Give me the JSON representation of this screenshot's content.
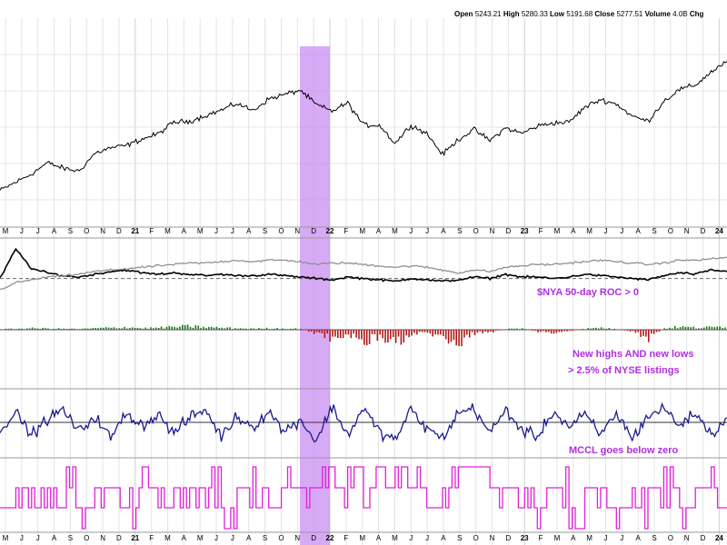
{
  "header": {
    "open_label": "Open",
    "open_value": "5243.21",
    "high_label": "High",
    "high_value": "5280.33",
    "low_label": "Low",
    "low_value": "5191.68",
    "close_label": "Close",
    "close_value": "5277.51",
    "volume_label": "Volume",
    "volume_value": "4.0B",
    "chg_label": "Chg"
  },
  "colors": {
    "price": "#000000",
    "nya": "#000000",
    "roc": "#909090",
    "highs": "#1a7a1a",
    "lows": "#b01818",
    "mccl": "#1a1a8c",
    "indicator": "#e020d8",
    "highlight": "#c98ef2",
    "annotation": "#b02ee0",
    "grid": "#e4e4e4"
  },
  "x_axis": {
    "month_labels": [
      "M",
      "J",
      "J",
      "A",
      "S",
      "O",
      "N",
      "D",
      "21",
      "F",
      "M",
      "A",
      "M",
      "J",
      "J",
      "A",
      "S",
      "O",
      "N",
      "D",
      "22",
      "F",
      "M",
      "A",
      "M",
      "J",
      "J",
      "A",
      "S",
      "O",
      "N",
      "D",
      "23",
      "F",
      "M",
      "A",
      "M",
      "J",
      "J",
      "A",
      "S",
      "O",
      "N",
      "D",
      "24",
      "F"
    ],
    "year_labels": [
      "21",
      "22",
      "23",
      "24"
    ]
  },
  "chart_data": [
    {
      "type": "line",
      "panel": "price",
      "series": [],
      "x": [
        "May 2020",
        "Jun 2020",
        "Jul 2020",
        "Aug 2020",
        "Sep 2020",
        "Oct 2020",
        "Nov 2020",
        "Dec 2020",
        "Jan 2021",
        "Feb 2021",
        "Mar 2021",
        "Apr 2021",
        "May 2021",
        "Jun 2021",
        "Jul 2021",
        "Aug 2021",
        "Sep 2021",
        "Oct 2021",
        "Nov 2021",
        "Dec 2021",
        "Jan 2022",
        "Feb 2022",
        "Mar 2022",
        "Apr 2022",
        "May 2022",
        "Jun 2022",
        "Jul 2022",
        "Aug 2022",
        "Sep 2022",
        "Oct 2022",
        "Nov 2022",
        "Dec 2022",
        "Jan 2023",
        "Feb 2023",
        "Mar 2023",
        "Apr 2023",
        "May 2023",
        "Jun 2023",
        "Jul 2023",
        "Aug 2023",
        "Sep 2023",
        "Oct 2023",
        "Nov 2023",
        "Dec 2023",
        "Jan 2024",
        "Feb 2024",
        "Mar 2024"
      ],
      "values": [
        2950,
        3100,
        3250,
        3450,
        3350,
        3300,
        3620,
        3720,
        3760,
        3880,
        3970,
        4180,
        4200,
        4300,
        4400,
        4520,
        4390,
        4600,
        4680,
        4760,
        4500,
        4380,
        4530,
        4130,
        4130,
        3800,
        4130,
        3980,
        3600,
        3870,
        4050,
        3850,
        4080,
        3980,
        4110,
        4170,
        4180,
        4450,
        4590,
        4510,
        4290,
        4200,
        4560,
        4770,
        4850,
        5090,
        5277
      ],
      "ylim": [
        2700,
        5400
      ],
      "highlight": [
        "Nov 2021",
        "Jan 2022"
      ]
    },
    {
      "type": "line",
      "panel": "breadth",
      "series": [
        {
          "name": "",
          "values": [
            0.5,
            2.6,
            1.2,
            0.9,
            0.7,
            0.6,
            0.8,
            1.0,
            1.1,
            0.9,
            0.8,
            0.9,
            0.8,
            0.7,
            0.8,
            0.7,
            0.7,
            0.8,
            0.7,
            0.6,
            0.5,
            0.4,
            0.6,
            0.5,
            0.4,
            0.3,
            0.5,
            0.4,
            0.3,
            0.4,
            0.6,
            0.5,
            0.8,
            0.6,
            0.6,
            0.5,
            0.6,
            0.8,
            0.7,
            0.6,
            0.5,
            0.4,
            0.7,
            0.9,
            0.8,
            1.1,
            1.0
          ]
        },
        {
          "name": "",
          "values": [
            -0.3,
            0.2,
            0.4,
            0.6,
            0.7,
            0.8,
            1.0,
            1.1,
            1.2,
            1.3,
            1.4,
            1.5,
            1.6,
            1.6,
            1.7,
            1.8,
            1.7,
            1.8,
            1.8,
            1.7,
            1.5,
            1.6,
            1.6,
            1.5,
            1.4,
            1.3,
            1.4,
            1.3,
            1.1,
            0.9,
            1.1,
            1.0,
            1.3,
            1.4,
            1.5,
            1.5,
            1.6,
            1.7,
            1.8,
            1.7,
            1.6,
            1.5,
            1.6,
            1.8,
            1.8,
            1.9,
            2.0
          ]
        }
      ],
      "reference": 0.5,
      "ylim": [
        -0.5,
        3.0
      ],
      "annotation": "$NYA 50-day ROC > 0"
    },
    {
      "type": "bar",
      "panel": "highs-lows",
      "values": [
        0.2,
        0.4,
        0.6,
        0.5,
        0.4,
        0.3,
        0.6,
        0.8,
        1.0,
        0.6,
        0.8,
        1.2,
        1.4,
        1.0,
        0.8,
        0.6,
        0.4,
        0.6,
        0.5,
        0.4,
        -1.5,
        -3.5,
        -2.5,
        -4.5,
        -3.0,
        -5.0,
        -2.0,
        -1.5,
        -3.0,
        -5.5,
        -1.5,
        -1.0,
        0.3,
        0.5,
        -0.8,
        -1.2,
        -0.6,
        0.4,
        0.8,
        0.2,
        -1.0,
        -3.5,
        0.6,
        1.2,
        0.8,
        1.0,
        1.4
      ],
      "ylim": [
        -7,
        3
      ],
      "annotation": "New highs AND new lows\n> 2.5% of NYSE listings"
    },
    {
      "type": "line",
      "panel": "mccl",
      "values": [
        -20,
        30,
        -40,
        10,
        40,
        -30,
        20,
        -50,
        30,
        -10,
        25,
        -35,
        15,
        40,
        -45,
        20,
        -15,
        35,
        -30,
        10,
        -60,
        50,
        -40,
        45,
        -30,
        -55,
        40,
        -20,
        -50,
        30,
        45,
        -35,
        40,
        -25,
        -45,
        35,
        -15,
        25,
        -40,
        30,
        -50,
        20,
        45,
        -10,
        30,
        -40,
        15
      ],
      "reference": 0,
      "ylim": [
        -100,
        100
      ],
      "annotation": "MCCL goes below zero"
    },
    {
      "type": "line",
      "panel": "indicator",
      "values": [
        1,
        2,
        1,
        2,
        2,
        1,
        2,
        2,
        1,
        2,
        1,
        2,
        2,
        2,
        1,
        2,
        2,
        1,
        2,
        2,
        3,
        2,
        3,
        2,
        3,
        3,
        2,
        1,
        2,
        3,
        3,
        2,
        2,
        1,
        1,
        2,
        1,
        2,
        2,
        1,
        1,
        2,
        2,
        1,
        2,
        2,
        3
      ],
      "ylim": [
        0,
        3.5
      ]
    }
  ]
}
